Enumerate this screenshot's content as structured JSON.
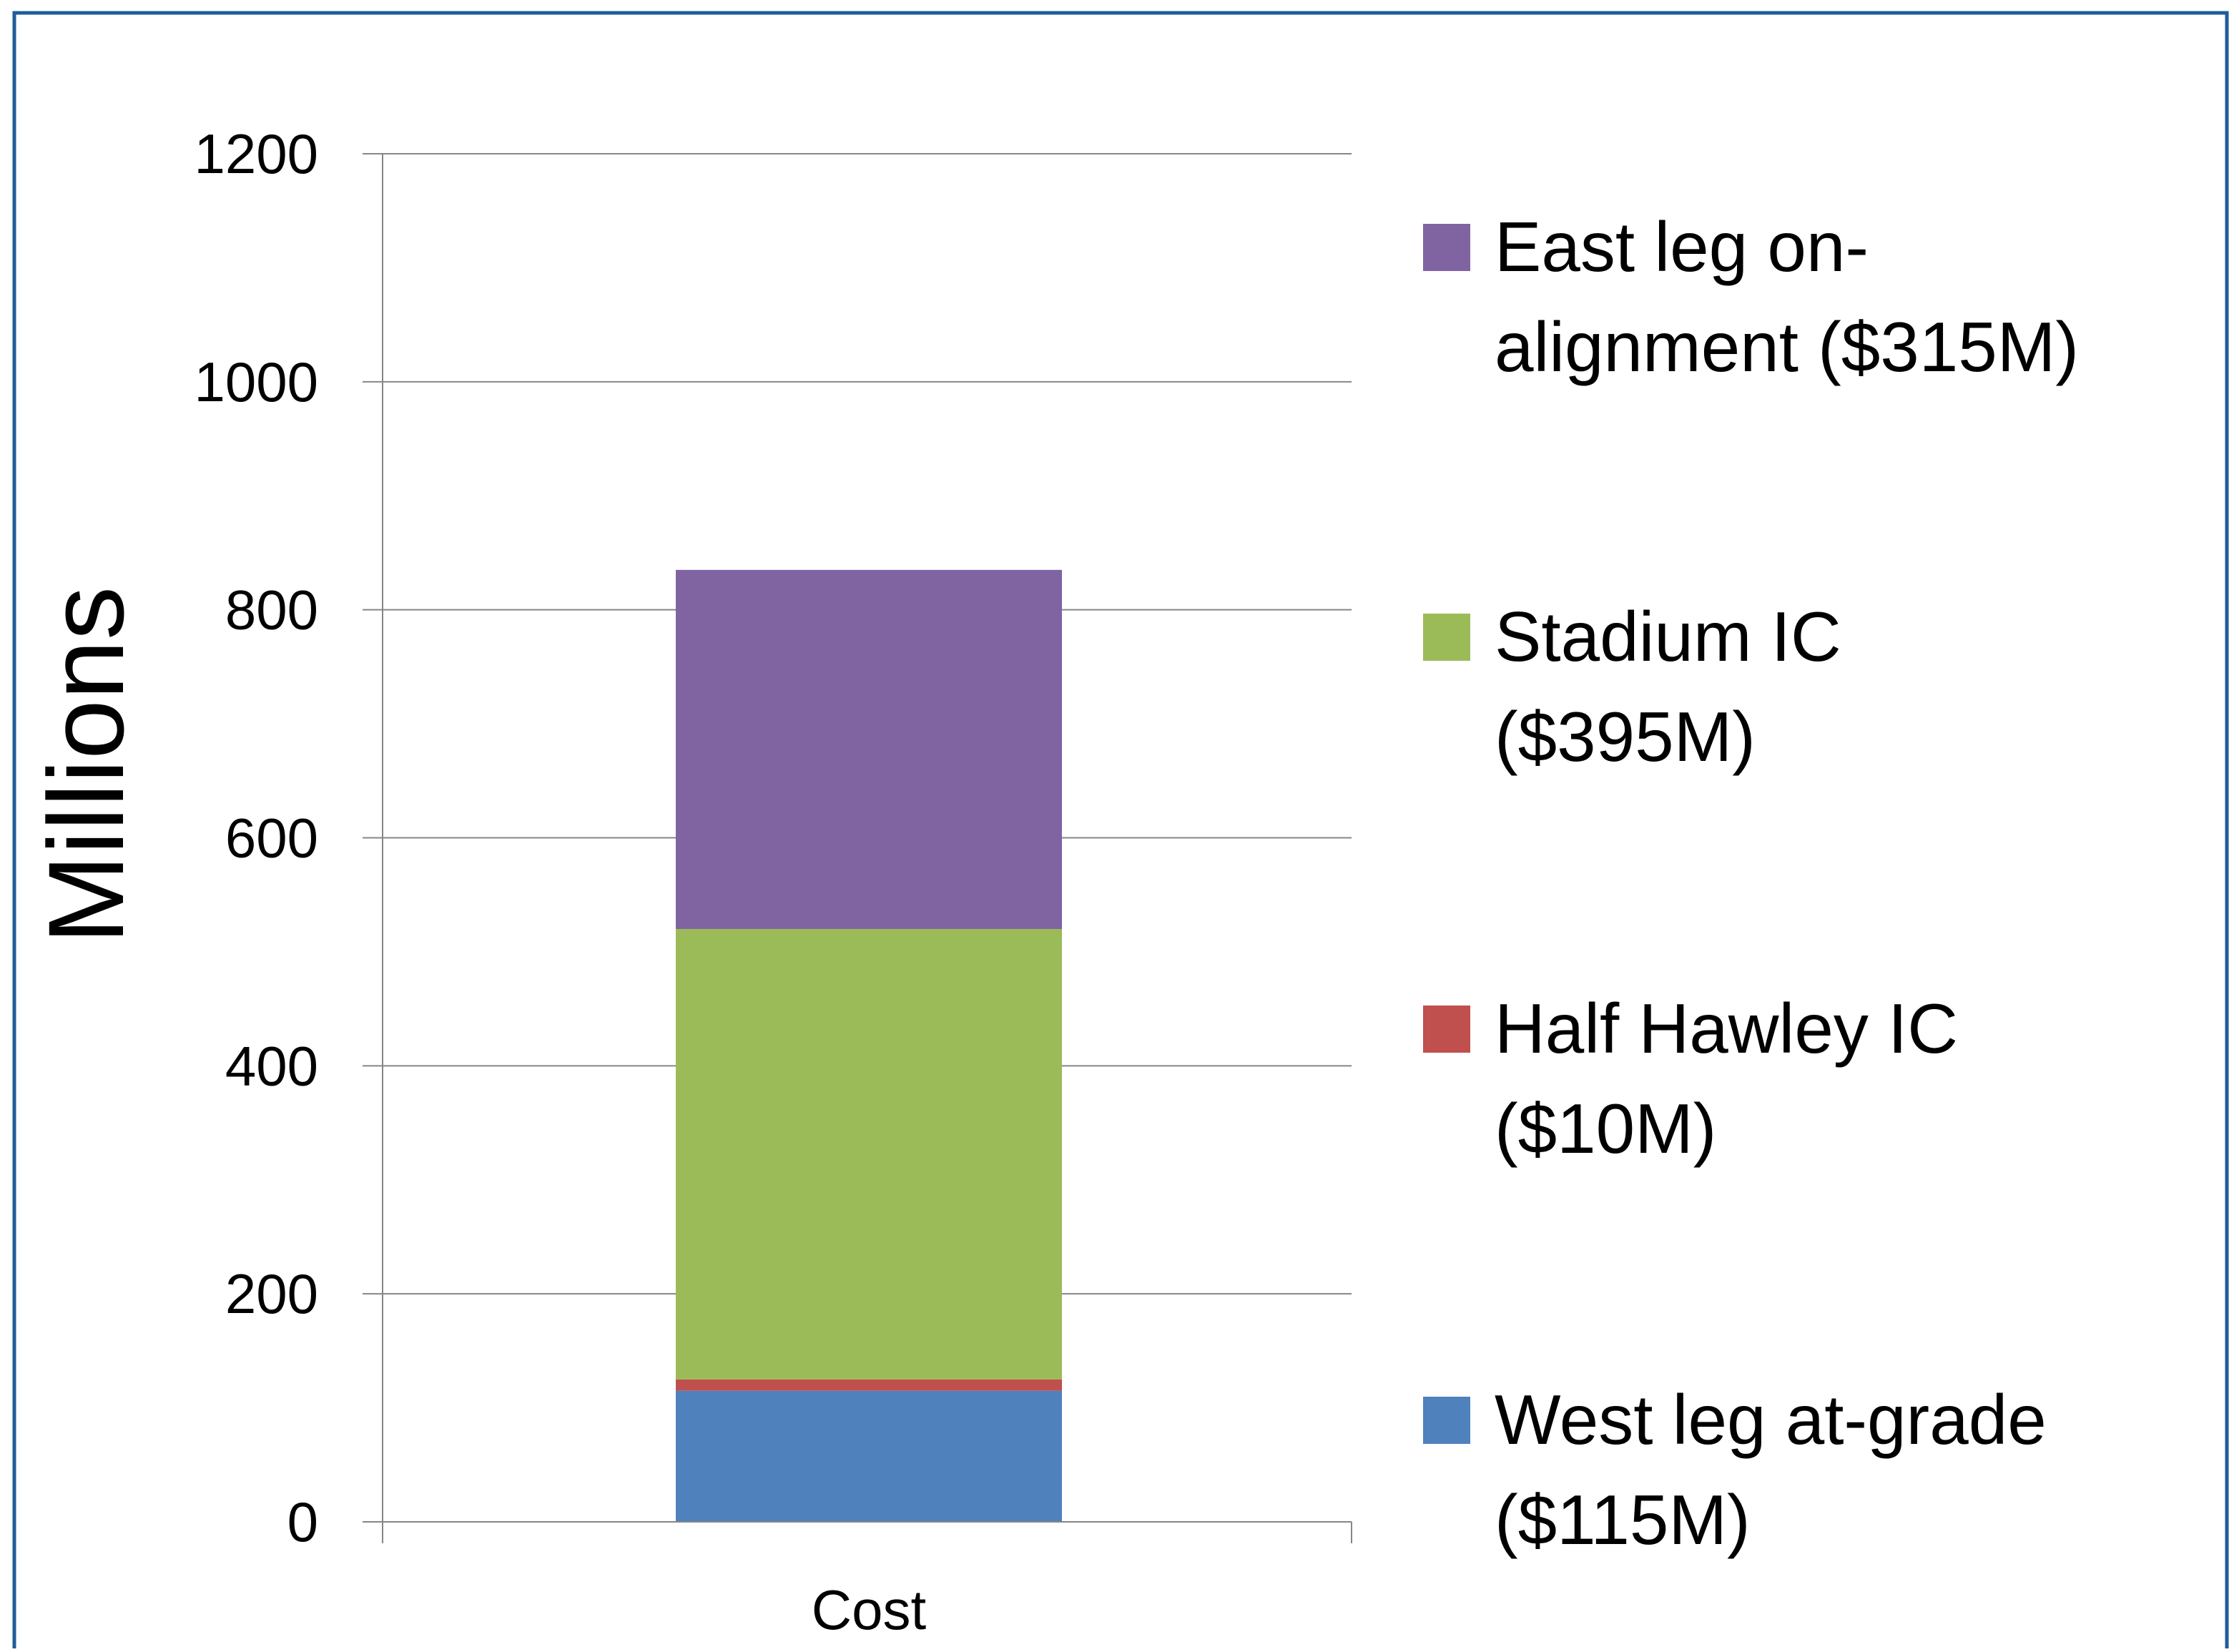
{
  "chart_data": {
    "type": "bar",
    "stacked": true,
    "categories": [
      "Cost"
    ],
    "series": [
      {
        "name": "West leg at-grade ($115M)",
        "legend_lines": [
          "West leg at-grade",
          "($115M)"
        ],
        "values": [
          115
        ],
        "color": "#4f81bd"
      },
      {
        "name": "Half Hawley IC ($10M)",
        "legend_lines": [
          "Half Hawley IC",
          "($10M)"
        ],
        "values": [
          10
        ],
        "color": "#c0504d"
      },
      {
        "name": "Stadium IC ($395M)",
        "legend_lines": [
          "Stadium IC",
          "($395M)"
        ],
        "values": [
          395
        ],
        "color": "#9bbb59"
      },
      {
        "name": "East leg on-alignment ($315M)",
        "legend_lines": [
          "East leg on-",
          "alignment ($315M)"
        ],
        "values": [
          315
        ],
        "color": "#8064a2"
      }
    ],
    "ylabel": "Millions",
    "xlabel": "",
    "ylim": [
      0,
      1200
    ],
    "yticks": [
      "0",
      "200",
      "400",
      "600",
      "800",
      "1000",
      "1200"
    ],
    "grid": true,
    "legend_position": "right"
  },
  "colors": {
    "frame_border": "#1f5c99",
    "gridline": "#868686",
    "axis": "#868686"
  }
}
